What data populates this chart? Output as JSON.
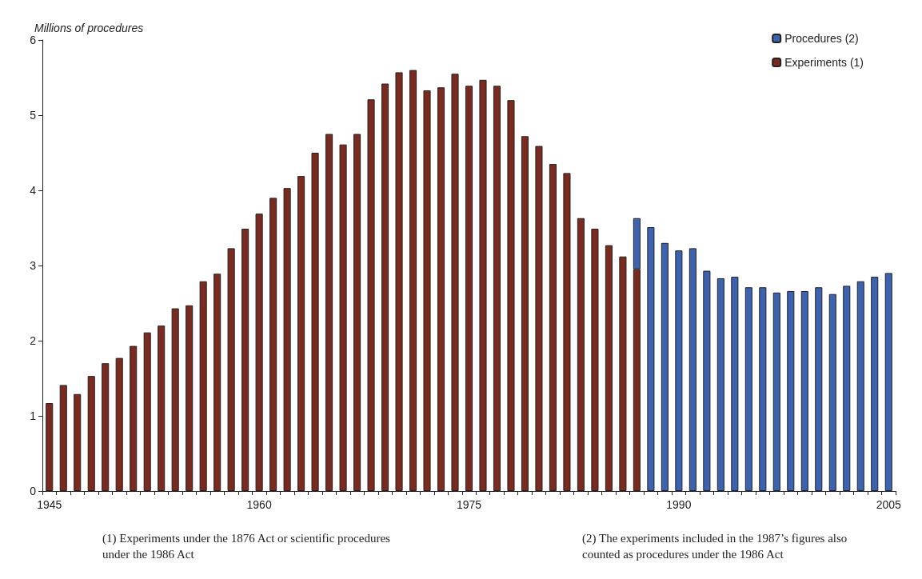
{
  "chart_data": {
    "type": "bar",
    "stacked": true,
    "ylabel": "Millions of procedures",
    "categories": [
      "1945",
      null,
      null,
      null,
      null,
      null,
      null,
      null,
      null,
      null,
      null,
      null,
      null,
      null,
      null,
      "1960",
      null,
      null,
      null,
      null,
      null,
      null,
      null,
      null,
      null,
      null,
      null,
      null,
      null,
      null,
      "1975",
      null,
      null,
      null,
      null,
      null,
      null,
      null,
      null,
      null,
      null,
      null,
      null,
      null,
      null,
      "1990",
      null,
      null,
      null,
      null,
      null,
      null,
      null,
      null,
      null,
      null,
      null,
      null,
      null,
      null,
      "2005"
    ],
    "series": [
      {
        "name": "Experiments (1)",
        "color": "#7b2a20",
        "values": [
          1.17,
          1.41,
          1.29,
          1.53,
          1.7,
          1.77,
          1.93,
          2.11,
          2.2,
          2.43,
          2.47,
          2.79,
          2.89,
          3.23,
          3.49,
          3.69,
          3.9,
          4.03,
          4.19,
          4.5,
          4.75,
          4.61,
          4.75,
          5.21,
          5.42,
          5.57,
          5.6,
          5.33,
          5.37,
          5.55,
          5.39,
          5.47,
          5.39,
          5.2,
          4.72,
          4.59,
          4.35,
          4.23,
          3.63,
          3.49,
          3.27,
          3.12,
          2.95,
          null,
          null,
          null,
          null,
          null,
          null,
          null,
          null,
          null,
          null,
          null,
          null,
          null,
          null,
          null,
          null,
          null,
          null
        ]
      },
      {
        "name": "Procedures (2)",
        "color": "#3d63b0",
        "values": [
          null,
          null,
          null,
          null,
          null,
          null,
          null,
          null,
          null,
          null,
          null,
          null,
          null,
          null,
          null,
          null,
          null,
          null,
          null,
          null,
          null,
          null,
          null,
          null,
          null,
          null,
          null,
          null,
          null,
          null,
          null,
          null,
          null,
          null,
          null,
          null,
          null,
          null,
          null,
          null,
          null,
          null,
          0.68,
          3.51,
          3.3,
          3.2,
          3.23,
          2.93,
          2.83,
          2.85,
          2.71,
          2.71,
          2.64,
          2.66,
          2.66,
          2.71,
          2.62,
          2.73,
          2.79,
          2.85,
          2.9
        ]
      }
    ],
    "ylim": [
      0,
      6
    ],
    "yticks": [
      0,
      1,
      2,
      3,
      4,
      5,
      6
    ],
    "grid": false,
    "legend": "top right",
    "annotations": [
      "(1) Experiments under the 1876 Act or scientific procedures under the 1986 Act",
      "(2) The experiments included in the 1987’s figures also counted as procedures under the 1986 Act"
    ]
  }
}
